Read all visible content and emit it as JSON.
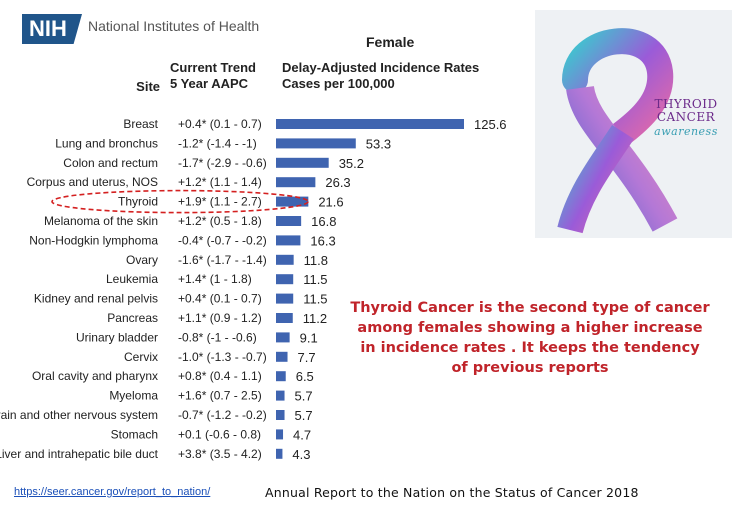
{
  "header": {
    "org_badge": "NIH",
    "org_name": "National Institutes of Health",
    "group": "Female",
    "col_site": "Site",
    "col_trend_line1": "Current Trend",
    "col_trend_line2": "5 Year AAPC",
    "col_rates_line1": "Delay-Adjusted Incidence Rates",
    "col_rates_line2": "Cases per 100,000"
  },
  "chart_data": {
    "type": "bar",
    "orientation": "horizontal",
    "title": "Female",
    "xlabel": "Delay-Adjusted Incidence Rates Cases per 100,000",
    "categories": [
      "Breast",
      "Lung and bronchus",
      "Colon and rectum",
      "Corpus and uterus, NOS",
      "Thyroid",
      "Melanoma of the skin",
      "Non-Hodgkin lymphoma",
      "Ovary",
      "Leukemia",
      "Kidney and renal pelvis",
      "Pancreas",
      "Urinary bladder",
      "Cervix",
      "Oral cavity and pharynx",
      "Myeloma",
      "Brain and other nervous system",
      "Stomach",
      "Liver and intrahepatic bile duct"
    ],
    "values": [
      125.6,
      53.3,
      35.2,
      26.3,
      21.6,
      16.8,
      16.3,
      11.8,
      11.5,
      11.5,
      11.2,
      9.1,
      7.7,
      6.5,
      5.7,
      5.7,
      4.7,
      4.3
    ],
    "value_labels": [
      "125.6",
      "53.3",
      "35.2",
      "26.3",
      "21.6",
      "16.8",
      "16.3",
      "11.8",
      "11.5",
      "11.5",
      "11.2",
      "9.1",
      "7.7",
      "6.5",
      "5.7",
      "5.7",
      "4.7",
      "4.3"
    ],
    "trend_aapc": [
      "+0.4* (0.1 - 0.7)",
      "-1.2* (-1.4 - -1)",
      "-1.7* (-2.9 - -0.6)",
      "+1.2* (1.1 - 1.4)",
      "+1.9* (1.1 - 2.7)",
      "+1.2* (0.5 - 1.8)",
      "-0.4* (-0.7 - -0.2)",
      "-1.6* (-1.7 - -1.4)",
      "+1.4* (1 - 1.8)",
      "+0.4* (0.1 - 0.7)",
      "+1.1* (0.9 - 1.2)",
      "-0.8* (-1 - -0.6)",
      "-1.0* (-1.3 - -0.7)",
      "+0.8* (0.4 - 1.1)",
      "+1.6* (0.7 - 2.5)",
      "-0.7* (-1.2 - -0.2)",
      "+0.1 (-0.6 - 0.8)",
      "+3.8* (3.5 - 4.2)"
    ],
    "highlighted_category": "Thyroid",
    "bar_color": "#3f64b0",
    "highlight_color": "#d42020",
    "grid": false
  },
  "ribbon": {
    "line1": "THYROID",
    "line2": "CANCER",
    "line3": "awareness"
  },
  "callout": "Thyroid Cancer is the second type of cancer among females showing a higher increase  in incidence rates . It keeps the tendency of previous reports",
  "footer": {
    "link": "https://seer.cancer.gov/report_to_nation/",
    "report": "Annual Report to the Nation on the Status of Cancer 2018"
  }
}
